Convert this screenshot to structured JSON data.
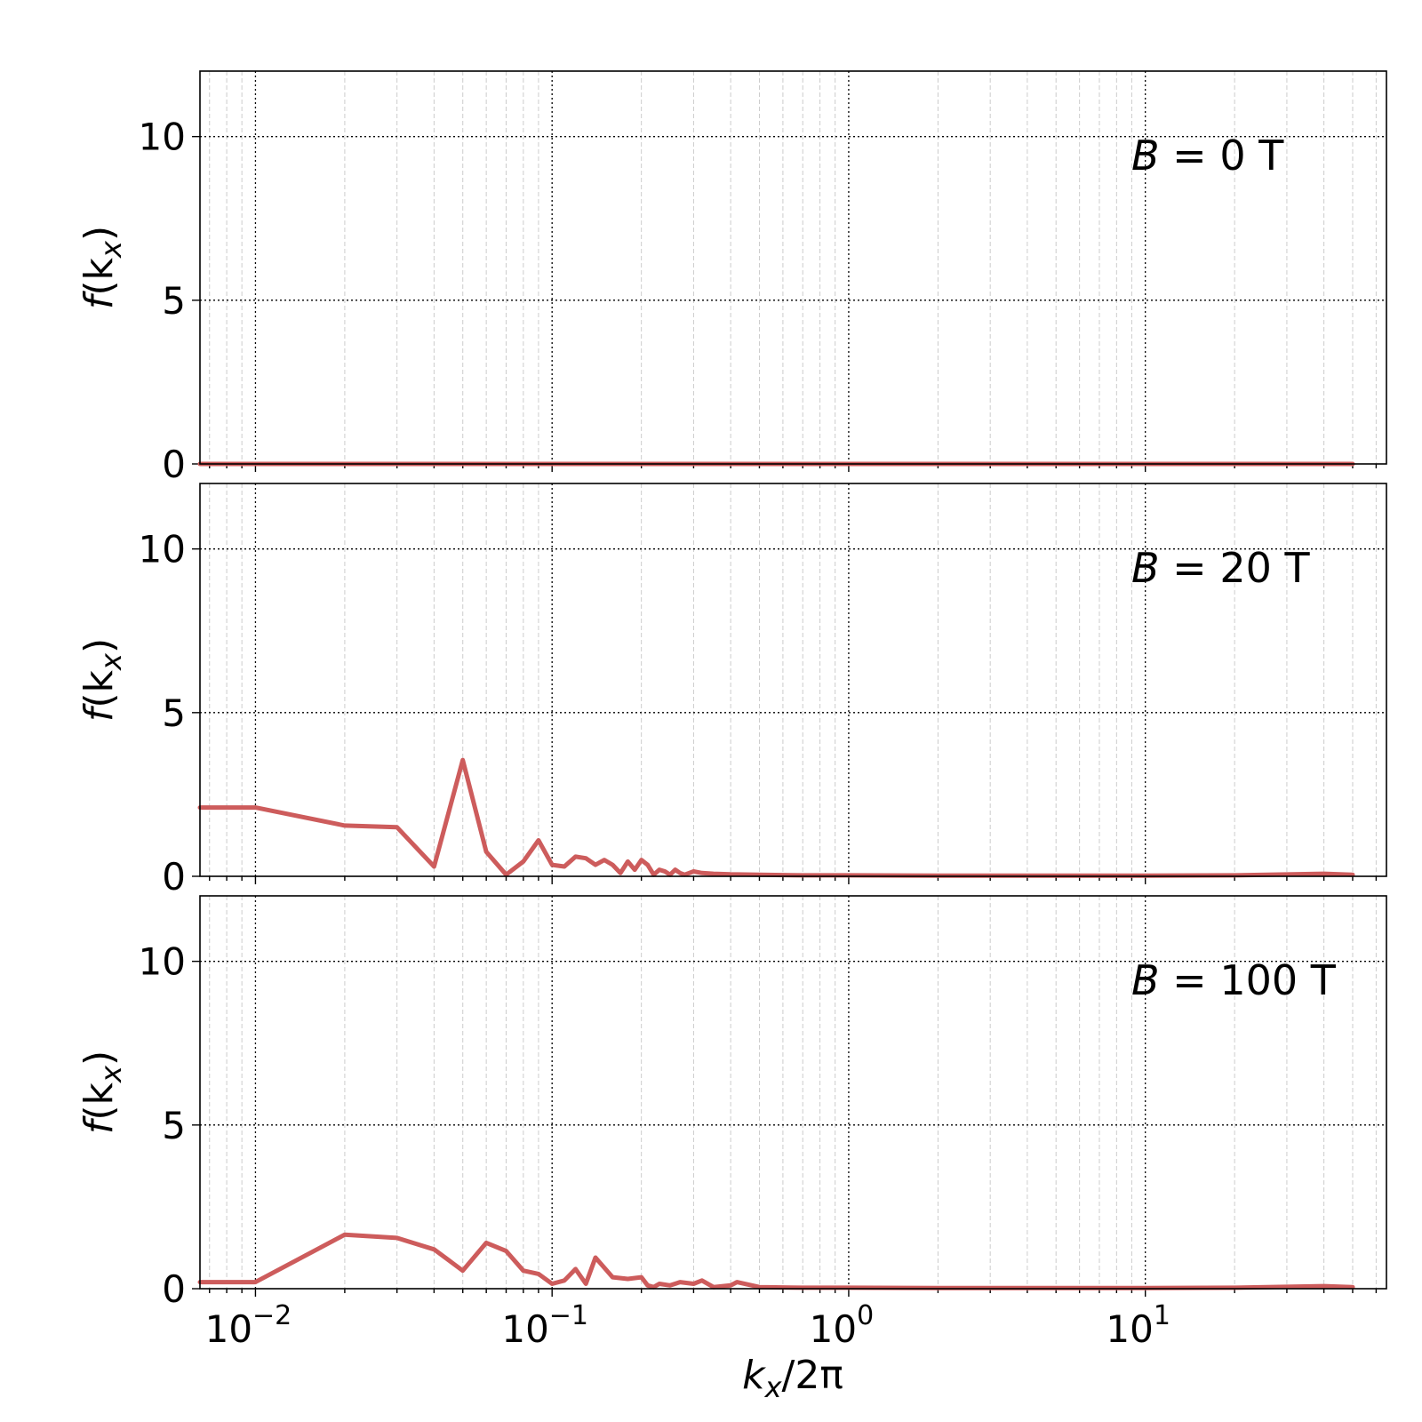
{
  "colors": {
    "series": "#cd5c5c",
    "axis": "#000000",
    "minor_grid": "#cccccc"
  },
  "chart_data": [
    {
      "type": "line",
      "annotation": {
        "var": "B",
        "text": " = 0 T"
      },
      "ylabel": {
        "italic": "f",
        "text": "(k",
        "sub": "x",
        "close": ")"
      },
      "xscale": "log",
      "xlim": [
        0.0065,
        65
      ],
      "ylim": [
        0,
        12
      ],
      "yticks": [
        0,
        5,
        10
      ],
      "grid": true,
      "x": [
        0.0065,
        0.01,
        0.1,
        1,
        10,
        50
      ],
      "y": [
        0,
        0,
        0,
        0,
        0,
        0
      ]
    },
    {
      "type": "line",
      "annotation": {
        "var": "B",
        "text": " = 20 T"
      },
      "ylabel": {
        "italic": "f",
        "text": "(k",
        "sub": "x",
        "close": ")"
      },
      "xscale": "log",
      "xlim": [
        0.0065,
        65
      ],
      "ylim": [
        0,
        12
      ],
      "yticks": [
        0,
        5,
        10
      ],
      "grid": true,
      "x": [
        0.0065,
        0.01,
        0.02,
        0.03,
        0.04,
        0.05,
        0.06,
        0.07,
        0.08,
        0.09,
        0.1,
        0.11,
        0.12,
        0.13,
        0.14,
        0.15,
        0.16,
        0.17,
        0.18,
        0.19,
        0.2,
        0.21,
        0.22,
        0.23,
        0.24,
        0.25,
        0.26,
        0.27,
        0.28,
        0.3,
        0.32,
        0.35,
        0.4,
        0.5,
        0.7,
        1,
        2,
        5,
        10,
        20,
        40,
        50
      ],
      "y": [
        2.1,
        2.1,
        1.55,
        1.5,
        0.3,
        3.55,
        0.75,
        0.05,
        0.45,
        1.1,
        0.35,
        0.3,
        0.6,
        0.55,
        0.35,
        0.5,
        0.35,
        0.1,
        0.45,
        0.2,
        0.5,
        0.35,
        0.05,
        0.2,
        0.15,
        0.05,
        0.2,
        0.1,
        0.05,
        0.15,
        0.1,
        0.08,
        0.06,
        0.05,
        0.03,
        0.03,
        0.02,
        0.02,
        0.02,
        0.03,
        0.08,
        0.05
      ]
    },
    {
      "type": "line",
      "annotation": {
        "var": "B",
        "text": " = 100 T"
      },
      "ylabel": {
        "italic": "f",
        "text": "(k",
        "sub": "x",
        "close": ")"
      },
      "xlabel": {
        "italic": "k",
        "sub": "x",
        "text": "/2π"
      },
      "xscale": "log",
      "xlim": [
        0.0065,
        65
      ],
      "ylim": [
        0,
        12
      ],
      "yticks": [
        0,
        5,
        10
      ],
      "xticks": [
        {
          "value": 0.01,
          "base": "10",
          "exp": "−2"
        },
        {
          "value": 0.1,
          "base": "10",
          "exp": "−1"
        },
        {
          "value": 1,
          "base": "10",
          "exp": "0"
        },
        {
          "value": 10,
          "base": "10",
          "exp": "1"
        }
      ],
      "grid": true,
      "x": [
        0.0065,
        0.01,
        0.02,
        0.03,
        0.04,
        0.05,
        0.06,
        0.07,
        0.08,
        0.09,
        0.1,
        0.11,
        0.12,
        0.13,
        0.14,
        0.16,
        0.18,
        0.2,
        0.21,
        0.22,
        0.23,
        0.25,
        0.27,
        0.3,
        0.32,
        0.35,
        0.4,
        0.42,
        0.5,
        0.7,
        1,
        2,
        5,
        10,
        20,
        40,
        50
      ],
      "y": [
        0.2,
        0.2,
        1.65,
        1.55,
        1.2,
        0.55,
        1.4,
        1.15,
        0.55,
        0.45,
        0.15,
        0.25,
        0.6,
        0.15,
        0.95,
        0.35,
        0.3,
        0.35,
        0.1,
        0.05,
        0.15,
        0.1,
        0.2,
        0.15,
        0.25,
        0.05,
        0.1,
        0.2,
        0.05,
        0.03,
        0.03,
        0.02,
        0.02,
        0.02,
        0.03,
        0.08,
        0.05
      ]
    }
  ]
}
